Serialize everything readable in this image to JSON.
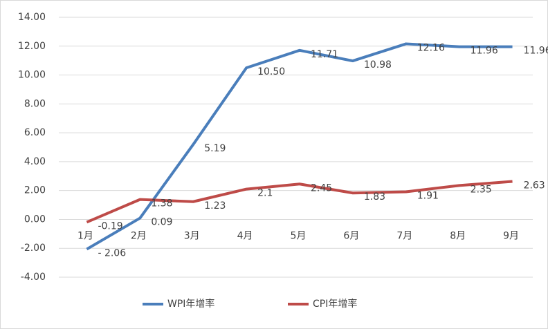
{
  "chart_data": {
    "type": "line",
    "categories": [
      "1月",
      "2月",
      "3月",
      "4月",
      "5月",
      "6月",
      "7月",
      "8月",
      "9月"
    ],
    "series": [
      {
        "name": "WPI年增率",
        "color": "#4a7ebb",
        "values": [
          -2.06,
          0.09,
          5.19,
          10.5,
          11.71,
          10.98,
          12.16,
          11.96,
          11.96
        ],
        "value_labels": [
          "- 2.06",
          "0.09",
          "5.19",
          "10.50",
          "11.71",
          "10.98",
          "12.16",
          "11.96",
          "11.96"
        ]
      },
      {
        "name": "CPI年增率",
        "color": "#be4b48",
        "values": [
          -0.19,
          1.38,
          1.23,
          2.1,
          2.45,
          1.83,
          1.91,
          2.35,
          2.63
        ],
        "value_labels": [
          "-0.19",
          "1.38",
          "1.23",
          "2.1",
          "2.45",
          "1.83",
          "1.91",
          "2.35",
          "2.63"
        ]
      }
    ],
    "ylim": [
      -4,
      14
    ],
    "yticks": [
      {
        "value": -4,
        "label": "-4.00"
      },
      {
        "value": -2,
        "label": "-2.00"
      },
      {
        "value": 0,
        "label": "0.00"
      },
      {
        "value": 2,
        "label": "2.00"
      },
      {
        "value": 4,
        "label": "4.00"
      },
      {
        "value": 6,
        "label": "6.00"
      },
      {
        "value": 8,
        "label": "8.00"
      },
      {
        "value": 10,
        "label": "10.00"
      },
      {
        "value": 12,
        "label": "12.00"
      },
      {
        "value": 14,
        "label": "14.00"
      }
    ],
    "grid": true,
    "legend": "bottom"
  }
}
